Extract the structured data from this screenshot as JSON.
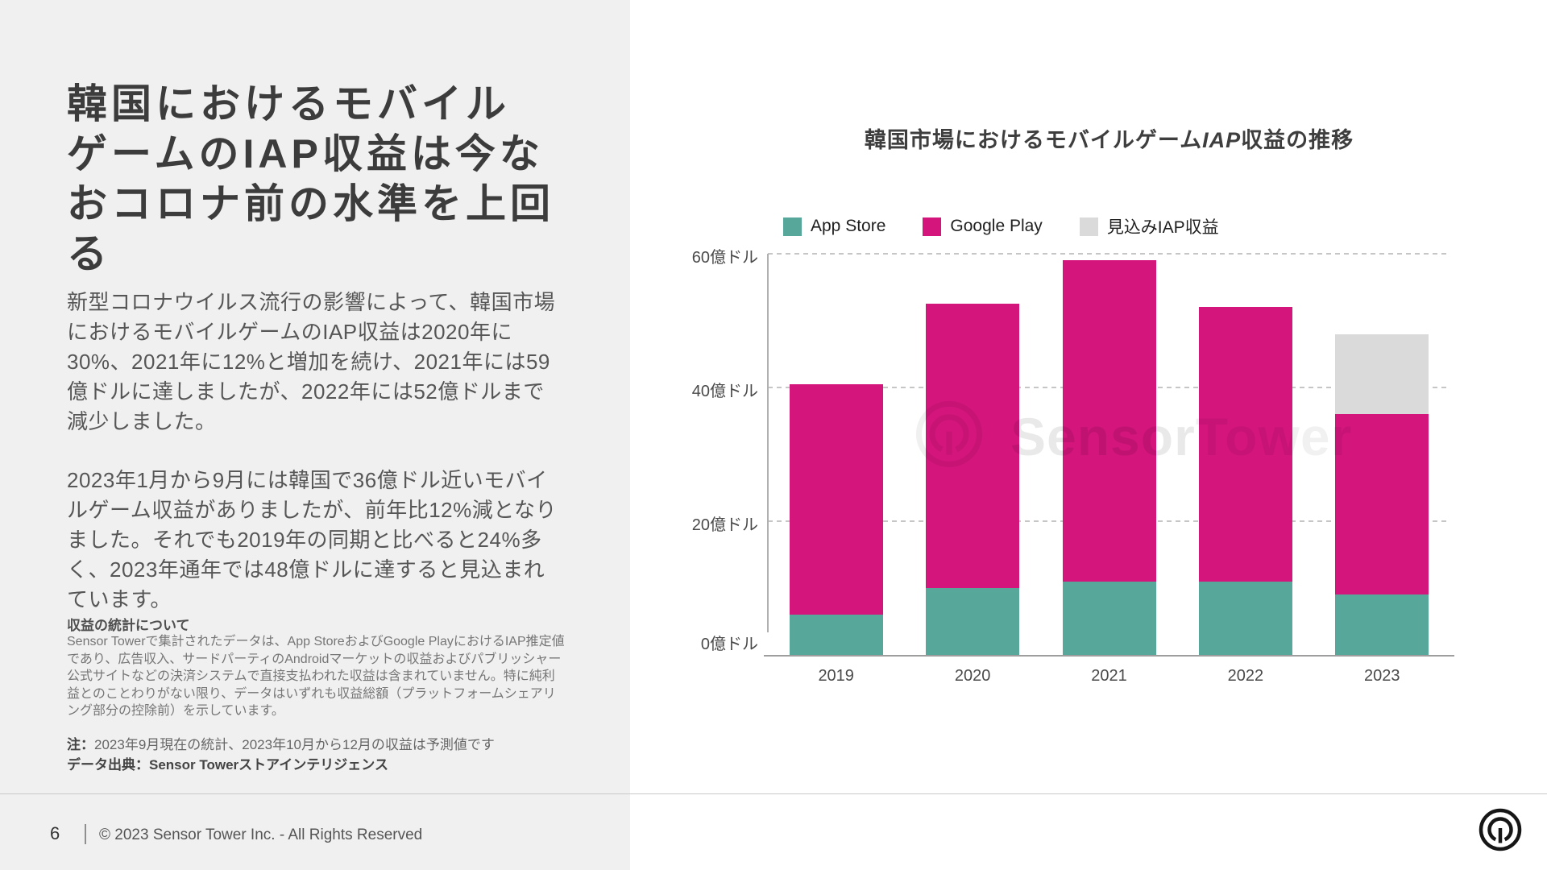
{
  "colors": {
    "left_panel_bg": "#F0F0F0",
    "title_text": "#3C3C3C",
    "body_text": "#565656",
    "fine_print": "#767676",
    "footer_text": "#555555",
    "separator": "#C9C9C9",
    "axis_line": "#9E9E9E",
    "grid_line": "#C6C6C6",
    "tick_text": "#4A4A4A",
    "legend_text": "#1F1F1F"
  },
  "left_panel": {
    "title": "韓国におけるモバイル\nゲームのIAP収益は今な\nおコロナ前の水準を上回\nる",
    "paragraph1": "新型コロナウイルス流行の影響によって、韓国市場\nにおけるモバイルゲームのIAP収益は2020年に\n30%、2021年に12%と増加を続け、2021年には59\n億ドルに達しましたが、2022年には52億ドルまで\n減少しました。",
    "paragraph2": "2023年1月から9月には韓国で36億ドル近いモバイ\nルゲーム収益がありましたが、前年比12%減となり\nました。それでも2019年の同期と比べると24%多\nく、2023年通年では48億ドルに達すると見込まれ\nています。",
    "stats_heading": "収益の統計について",
    "stats_body": "Sensor Towerで集計されたデータは、App StoreおよびGoogle PlayにおけるIAP推定値\nであり、広告収入、サードパーティのAndroidマーケットの収益およびパブリッシャー\n公式サイトなどの決済システムで直接支払われた収益は含まれていません。特に純利\n益とのことわりがない限り、データはいずれも収益総額（プラットフォームシェアリ\nング部分の控除前）を示しています。",
    "note_label": "注：",
    "note_text": "2023年9月現在の統計、2023年10月から12月の収益は予測値です",
    "source": "データ出典：Sensor Towerストアインテリジェンス"
  },
  "footer": {
    "page_number": "6",
    "copyright": "© 2023 Sensor Tower Inc. - All Rights Reserved"
  },
  "chart_data": {
    "type": "bar",
    "stacked": true,
    "title": "韓国市場におけるモバイルゲームIAP収益の推移",
    "title_pre": "韓国市場におけるモバイルゲーム",
    "title_italic": "IAP",
    "title_post": "収益の推移",
    "unit": "億ドル",
    "categories": [
      "2019",
      "2020",
      "2021",
      "2022",
      "2023"
    ],
    "series": [
      {
        "name": "App Store",
        "color": "#57A79B",
        "values": [
          6,
          10,
          11,
          11,
          9
        ]
      },
      {
        "name": "Google Play",
        "color": "#D3157C",
        "values": [
          34.5,
          42.5,
          48,
          41,
          27
        ]
      },
      {
        "name": "見込みIAP収益",
        "color": "#DADADA",
        "values": [
          0,
          0,
          0,
          0,
          12
        ]
      }
    ],
    "totals": [
      40.5,
      52.5,
      59,
      52,
      48
    ],
    "y_ticks": [
      {
        "value": 0,
        "label": "0億ドル"
      },
      {
        "value": 20,
        "label": "20億ドル"
      },
      {
        "value": 40,
        "label": "40億ドル"
      },
      {
        "value": 60,
        "label": "60億ドル"
      }
    ],
    "ymax": 60,
    "grid": "dashed-horizontal",
    "legend_position": "top",
    "watermark": {
      "text_bold": "Sensor",
      "text_light": "Tower"
    }
  }
}
